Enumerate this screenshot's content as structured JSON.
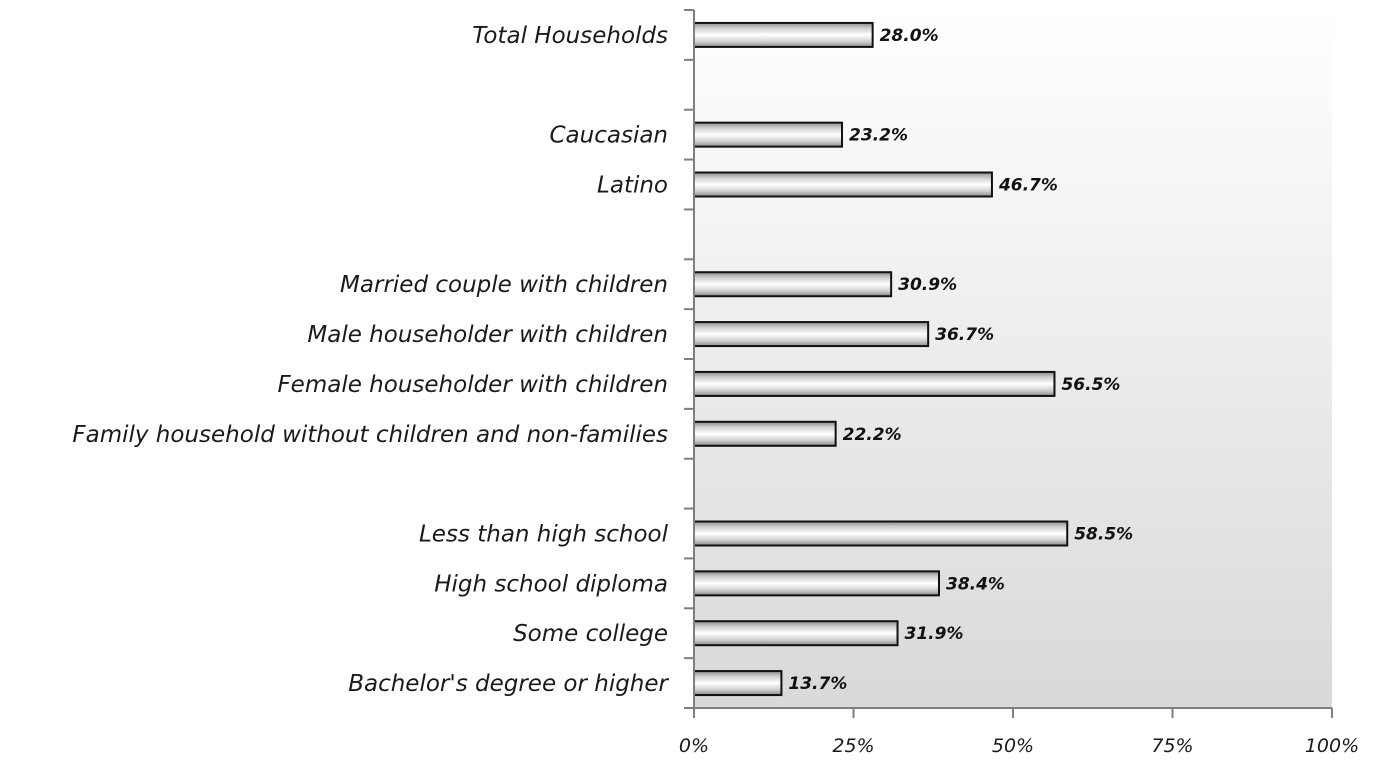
{
  "chart_data": {
    "type": "bar",
    "orientation": "horizontal",
    "title": "",
    "xlabel": "",
    "ylabel": "",
    "xlim": [
      0,
      100
    ],
    "value_unit": "%",
    "grid": false,
    "legend": "none",
    "bar_style": "gray cylindrical gradient with dark outline",
    "background_style": "white-to-light-gray gradient plot area",
    "x_ticks": [
      "0%",
      "25%",
      "50%",
      "75%",
      "100%"
    ],
    "category_slots": [
      "Total Households",
      "",
      "Caucasian",
      "Latino",
      "",
      "Married couple with children",
      "Male householder with children",
      "Female householder with children",
      "Family household without children and non-families",
      "",
      "Less than high school",
      "High school diploma",
      "Some college",
      "Bachelor's degree or higher"
    ],
    "categories": [
      "Total Households",
      "Caucasian",
      "Latino",
      "Married couple with children",
      "Male householder with children",
      "Female householder with children",
      "Family household without children and non-families",
      "Less than high school",
      "High school diploma",
      "Some college",
      "Bachelor's degree or higher"
    ],
    "values": [
      28.0,
      23.2,
      46.7,
      30.9,
      36.7,
      56.5,
      22.2,
      58.5,
      38.4,
      31.9,
      13.7
    ],
    "value_labels": [
      "28.0%",
      "23.2%",
      "46.7%",
      "30.9%",
      "36.7%",
      "56.5%",
      "22.2%",
      "58.5%",
      "38.4%",
      "31.9%",
      "13.7%"
    ]
  }
}
